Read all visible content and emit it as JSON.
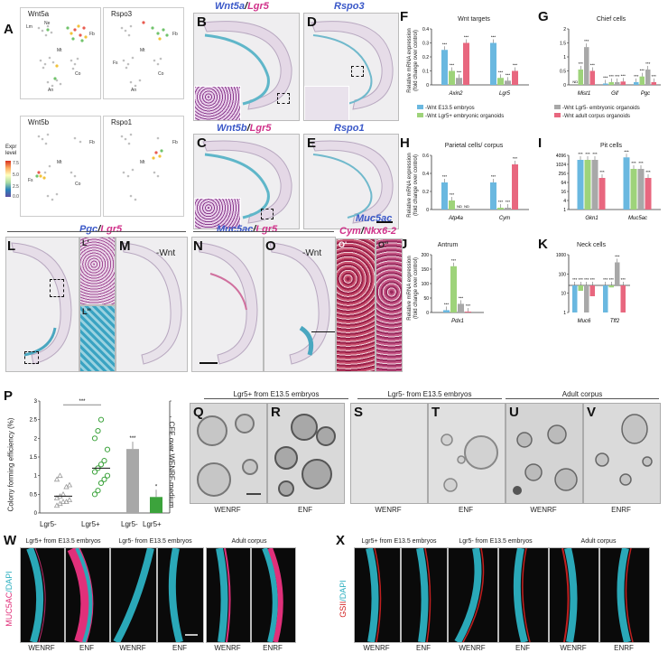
{
  "panels": {
    "A": "A",
    "B": "B",
    "C": "C",
    "D": "D",
    "E": "E",
    "F": "F",
    "G": "G",
    "H": "H",
    "I": "I",
    "J": "J",
    "K": "K",
    "L": "L",
    "M": "M",
    "N": "N",
    "O": "O",
    "P": "P",
    "Q": "Q",
    "R": "R",
    "S": "S",
    "T": "T",
    "U": "U",
    "V": "V",
    "W": "W",
    "X": "X"
  },
  "tsne": {
    "wnt5a": "Wnt5a",
    "rspo3": "Rspo3",
    "wnt5b": "Wnt5b",
    "rspo1": "Rspo1",
    "expr_level": "Expr level",
    "clusters": [
      "Lm",
      "Ne",
      "Mt",
      "Fb",
      "Co",
      "Fs",
      "An"
    ],
    "legend_ticks": [
      "7.5",
      "5.0",
      "2.5",
      "0.0"
    ],
    "axis_ticks": [
      "-20",
      "-10",
      "0",
      "10",
      "20",
      "30"
    ]
  },
  "micro": {
    "b_title_1": "Wnt5a",
    "b_title_2": "/",
    "b_title_3": "Lgr5",
    "c_title_1": "Wnt5b",
    "c_title_2": "/",
    "c_title_3": "Lgr5",
    "d_title": "Rspo3",
    "e_title": "Rspo1",
    "l_title_1": "Pgc",
    "l_title_2": "/",
    "l_title_3": "Lgr5",
    "l1": "L'",
    "l2": "L''",
    "m_label": "-Wnt",
    "n_title_1": "Muc5ac",
    "n_title_2": "/",
    "n_title_3": "Lgr5",
    "o_label": "-Wnt",
    "o_title_top": "Muc5ac",
    "o_title_1": "Cym",
    "o_title_2": "/",
    "o_title_3": "Nkx6-2",
    "o1": "O'",
    "o2": "O''"
  },
  "charts": {
    "y_label": "Relative mRNA expression",
    "y_sub": "(fold change over control)",
    "f_title": "Wnt targets",
    "g_title": "Chief cells",
    "h_title": "Parietal cells/ corpus",
    "i_title": "Pit cells",
    "j_title": "Antrum",
    "k_title": "Neck cells",
    "legend_f1": "-Wnt E13.5 embryos",
    "legend_f2": "-Wnt Lgr5+ embryonic organoids",
    "legend_g1": "-Wnt Lgr5- embryonic organoids",
    "legend_g2": "-Wnt adult corpus organoids",
    "nd": "ND",
    "colors": {
      "blue": "#6ab8e0",
      "green": "#9ed37a",
      "grey": "#a8a8a8",
      "pink": "#e8677f"
    }
  },
  "chart_data": [
    {
      "type": "bar",
      "title": "Wnt targets",
      "categories": [
        "Axin2",
        "Lgr5"
      ],
      "series": [
        {
          "name": "-Wnt E13.5 embryos",
          "values": [
            0.25,
            0.3
          ]
        },
        {
          "name": "-Wnt Lgr5+ embryonic organoids",
          "values": [
            0.1,
            0.05
          ]
        },
        {
          "name": "-Wnt Lgr5- embryonic organoids",
          "values": [
            0.05,
            0.03
          ]
        },
        {
          "name": "-Wnt adult corpus organoids",
          "values": [
            0.3,
            0.1
          ]
        }
      ],
      "ylim": [
        0,
        0.4
      ],
      "yticks": [
        "0.4",
        "0.3",
        "0.2",
        "0.1",
        "0"
      ]
    },
    {
      "type": "bar",
      "title": "Chief cells",
      "categories": [
        "Mist1",
        "Gif",
        "Pgc"
      ],
      "series": [
        {
          "name": "-Wnt E13.5 embryos",
          "values": [
            0,
            0.05,
            0.1
          ]
        },
        {
          "name": "-Wnt Lgr5+ embryonic organoids",
          "values": [
            0.55,
            0.1,
            0.3
          ]
        },
        {
          "name": "-Wnt Lgr5- embryonic organoids",
          "values": [
            1.35,
            0.1,
            0.55
          ]
        },
        {
          "name": "-Wnt adult corpus organoids",
          "values": [
            0.5,
            0.12,
            0.1
          ]
        }
      ],
      "ylim": [
        0,
        2
      ],
      "yticks": [
        "2",
        "1.5",
        "1",
        "0.5",
        "0"
      ]
    },
    {
      "type": "bar",
      "title": "Parietal cells/ corpus",
      "categories": [
        "Atp4a",
        "Cym"
      ],
      "series": [
        {
          "name": "-Wnt E13.5 embryos",
          "values": [
            0.3,
            0.3
          ]
        },
        {
          "name": "-Wnt Lgr5+ embryonic organoids",
          "values": [
            0.1,
            0.02
          ]
        },
        {
          "name": "-Wnt Lgr5- embryonic organoids",
          "values": [
            0,
            0.02
          ]
        },
        {
          "name": "-Wnt adult corpus organoids",
          "values": [
            0,
            0.5
          ]
        }
      ],
      "ylim": [
        0,
        0.6
      ],
      "yticks": [
        "0.6",
        "0.4",
        "0.2",
        "0"
      ]
    },
    {
      "type": "bar",
      "title": "Pit cells",
      "categories": [
        "Gkn1",
        "Muc5ac"
      ],
      "series": [
        {
          "name": "-Wnt E13.5 embryos",
          "values": [
            2048,
            3000
          ]
        },
        {
          "name": "-Wnt Lgr5+ embryonic organoids",
          "values": [
            2048,
            512
          ]
        },
        {
          "name": "-Wnt Lgr5- embryonic organoids",
          "values": [
            2048,
            512
          ]
        },
        {
          "name": "-Wnt adult corpus organoids",
          "values": [
            128,
            128
          ]
        }
      ],
      "yticks": [
        "4096",
        "1024",
        "256",
        "64",
        "16",
        "4",
        "1"
      ]
    },
    {
      "type": "bar",
      "title": "Antrum",
      "categories": [
        "Pdx1"
      ],
      "series": [
        {
          "name": "-Wnt E13.5 embryos",
          "values": [
            8
          ]
        },
        {
          "name": "-Wnt Lgr5+ embryonic organoids",
          "values": [
            160
          ]
        },
        {
          "name": "-Wnt Lgr5- embryonic organoids",
          "values": [
            30
          ]
        },
        {
          "name": "-Wnt adult corpus organoids",
          "values": [
            3
          ]
        }
      ],
      "ylim": [
        0,
        200
      ],
      "yticks": [
        "200",
        "150",
        "100",
        "50",
        "0"
      ]
    },
    {
      "type": "bar",
      "title": "Neck cells",
      "categories": [
        "Muc6",
        "Tff2"
      ],
      "series": [
        {
          "name": "-Wnt E13.5 embryos",
          "values": [
            0,
            0
          ]
        },
        {
          "name": "-Wnt Lgr5+ embryonic organoids",
          "values": [
            -3,
            20
          ]
        },
        {
          "name": "-Wnt Lgr5- embryonic organoids",
          "values": [
            0,
            400
          ]
        },
        {
          "name": "-Wnt adult corpus organoids",
          "values": [
            -6,
            0
          ]
        }
      ],
      "yticks": [
        "1000",
        "100",
        "10",
        "1"
      ]
    },
    {
      "type": "scatter",
      "title": "",
      "categories": [
        "Lgr5-",
        "Lgr5+"
      ],
      "series": [
        {
          "name": "Lgr5-",
          "values": [
            0.2,
            0.25,
            0.3,
            0.3,
            0.35,
            0.4,
            0.45,
            0.5,
            0.7,
            0.75,
            0.9,
            1.0
          ]
        },
        {
          "name": "Lgr5+",
          "values": [
            0.5,
            0.6,
            0.8,
            0.9,
            1.0,
            1.1,
            1.2,
            1.3,
            1.4,
            1.7,
            2.0,
            2.2,
            2.5
          ]
        }
      ],
      "mean": [
        0.45,
        1.2
      ],
      "ylabel": "Colony forming efficiency (%)",
      "ylim": [
        0,
        3
      ],
      "yticks": [
        "3",
        "2.5",
        "2",
        "1.5",
        "1",
        "0.5",
        "0"
      ]
    },
    {
      "type": "bar",
      "title": "",
      "categories": [
        "Lgr5-",
        "Lgr5+"
      ],
      "values": [
        8,
        2
      ],
      "ylabel": "CFE over WENRF medium",
      "ylim": [
        0,
        14
      ],
      "yticks": [
        "14",
        "12",
        "10",
        "8",
        "6",
        "4",
        "2"
      ]
    }
  ],
  "p_labels": {
    "ylabel": "Colony forming efficiency (%)",
    "y2label": "CFE over WENRF medium",
    "cat1": "Lgr5-",
    "cat2": "Lgr5+",
    "cat3": "Lgr5-",
    "cat4": "Lgr5+",
    "sig": "***",
    "sig2": "***",
    "sig3": "*"
  },
  "organoids": {
    "group1": "Lgr5+ from E13.5 embryos",
    "group2": "Lgr5- from E13.5 embryos",
    "group3": "Adult corpus",
    "q": "WENRF",
    "r": "ENF",
    "s": "WENRF",
    "t": "ENF",
    "u": "WENRF",
    "v": "ENRF"
  },
  "if_w": {
    "stain_1": "MUC5AC",
    "stain_2": "/DAPI",
    "group1": "Lgr5+ from E13.5 embryos",
    "group2": "Lgr5- from E13.5 embryos",
    "group3": "Adult corpus",
    "c1": "WENRF",
    "c2": "ENF",
    "c3": "WENRF",
    "c4": "ENF",
    "c5": "WENRF",
    "c6": "ENRF"
  },
  "if_x": {
    "stain_1": "GSII",
    "stain_2": "/DAPI",
    "group1": "Lgr5+ from E13.5 embryos",
    "group2": "Lgr5- from E13.5 embryos",
    "group3": "Adult corpus",
    "c1": "WENRF",
    "c2": "ENF",
    "c3": "WENRF",
    "c4": "ENF",
    "c5": "WENRF",
    "c6": "ENRF"
  }
}
